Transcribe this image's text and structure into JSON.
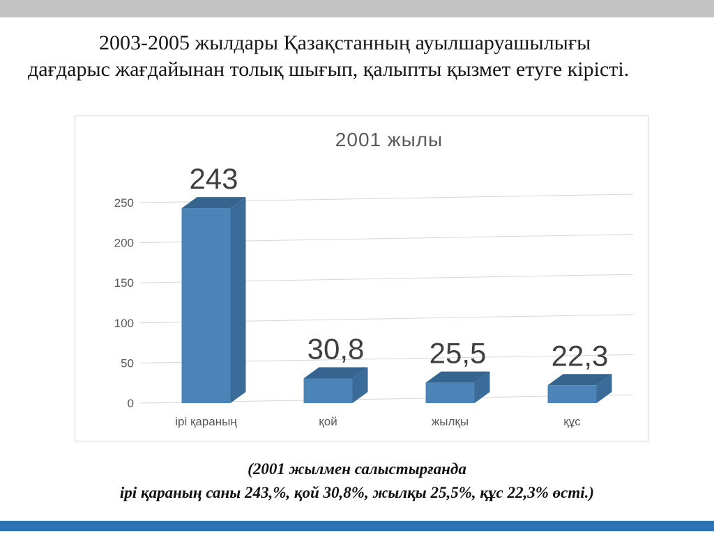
{
  "slide": {
    "title": "2003-2005 жылдары Қазақстанның ауылшаруашылығы дағдарыс жағдайынан толық шығып, қалыпты қызмет етуге кірісті.",
    "caption_line1": "(2001 жылмен салыстырғанда",
    "caption_line2": "ірі қараның саны 243,%, қой 30,8%, жылқы 25,5%, құс 22,3% өсті.)",
    "footer_bar_color": "#2e74b5"
  },
  "chart_data": {
    "type": "bar",
    "style": "3d",
    "title": "2001 жылы",
    "categories": [
      "ірі қараның",
      "қой",
      "жылқы",
      "құс"
    ],
    "values": [
      243,
      30.8,
      25.5,
      22.3
    ],
    "value_labels": [
      "243",
      "30,8",
      "25,5",
      "22,3"
    ],
    "yticks": [
      0,
      50,
      100,
      150,
      200,
      250
    ],
    "ylim": [
      0,
      250
    ],
    "grid": true,
    "legend": false,
    "bar_color": "#4c84b8",
    "bar_top_color": "#35648e",
    "bar_side_color": "#3a6b99",
    "gridline_color": "#d6d6d6",
    "axis_label_color": "#595959",
    "value_label_color": "#3f3f3f"
  }
}
